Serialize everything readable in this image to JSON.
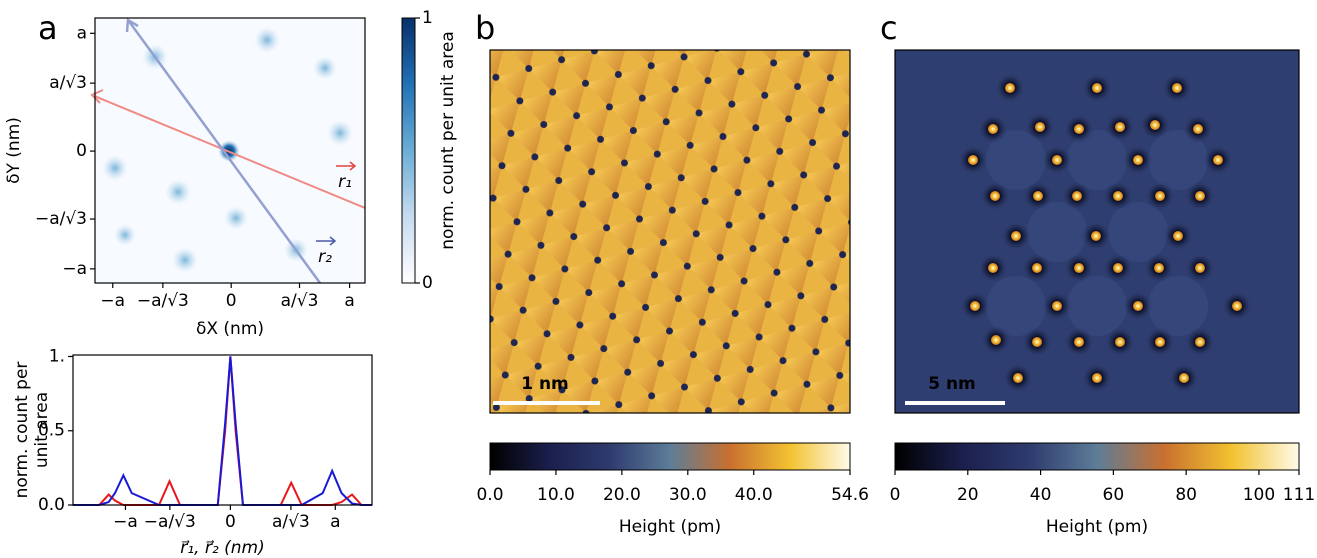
{
  "chart_data": [
    {
      "type": "heatmap",
      "panel_label": "a",
      "xlabel": "δX (nm)",
      "ylabel": "δY (nm)",
      "xlim": [
        -1.15,
        1.13
      ],
      "ylim": [
        -1.12,
        1.13
      ],
      "xticks": [
        {
          "value": -1,
          "label": "−a"
        },
        {
          "value": -0.577,
          "label": "−a/√3"
        },
        0,
        {
          "value": 0.577,
          "label": "a/√3"
        },
        {
          "value": 1,
          "label": "a"
        }
      ],
      "yticks": [
        {
          "value": -1,
          "label": "−a"
        },
        {
          "value": -0.577,
          "label": "−a/√3"
        },
        0,
        {
          "value": 0.577,
          "label": "a/√3"
        },
        {
          "value": 1,
          "label": "a"
        }
      ],
      "arrow_labels": [
        "r₁",
        "r₂"
      ],
      "arrow_colors": [
        "#e0453f",
        "#4a5aa8"
      ],
      "colorbar_label": "norm. count per unit area",
      "clim": [
        0,
        1
      ],
      "colorbar_ticks": [
        0,
        1
      ],
      "colormap": [
        "#ffffff",
        "#c6dbef",
        "#6baed6",
        "#2171b5",
        "#08306b"
      ]
    },
    {
      "type": "line",
      "ylabel_lines": [
        "norm. count per",
        "unit area"
      ],
      "xlabel": "r⃗₁, r⃗₂ (nm)",
      "xlim": [
        -1.5,
        1.35
      ],
      "ylim": [
        0,
        1.01
      ],
      "xticks": [
        {
          "value": -1,
          "label": "−a"
        },
        {
          "value": -0.577,
          "label": "−a/√3"
        },
        0,
        {
          "value": 0.577,
          "label": "a/√3"
        },
        {
          "value": 1,
          "label": "a"
        }
      ],
      "yticks": [
        {
          "value": 0,
          "label": "0.0"
        },
        0.5,
        {
          "value": 1,
          "label": "1."
        }
      ],
      "x": [
        -1.5,
        -1.25,
        -1.16,
        -1.1,
        -1.02,
        -0.94,
        -0.68,
        -0.58,
        -0.48,
        -0.12,
        -0.05,
        0,
        0.05,
        0.12,
        0.48,
        0.58,
        0.68,
        0.88,
        0.97,
        1.06,
        1.16,
        1.25,
        1.35
      ],
      "series": [
        {
          "color": "#e8161b",
          "values": [
            0,
            0,
            0.07,
            0.03,
            0,
            0,
            0,
            0.16,
            0,
            0,
            0.5,
            1,
            0.5,
            0,
            0,
            0.15,
            0,
            0,
            0,
            0.02,
            0.07,
            0,
            0
          ]
        },
        {
          "color": "#1a1ad6",
          "values": [
            0,
            0,
            0.02,
            0.08,
            0.2,
            0.08,
            0,
            0,
            0,
            0,
            0.55,
            1,
            0.55,
            0,
            0,
            0,
            0,
            0.08,
            0.23,
            0.08,
            0.01,
            0,
            0
          ]
        }
      ]
    },
    {
      "type": "image",
      "panel_label": "b",
      "scale_bar": "1 nm",
      "colorbar_label": "Height (pm)",
      "clim": [
        0,
        54.6
      ],
      "colorbar_ticks": [
        {
          "value": 0,
          "label": "0.0"
        },
        {
          "value": 10,
          "label": "10.0"
        },
        {
          "value": 20,
          "label": "20.0"
        },
        {
          "value": 30,
          "label": "30.0"
        },
        {
          "value": 40,
          "label": "40.0"
        },
        54.6
      ],
      "colormap": [
        "#000000",
        "#1b1f4d",
        "#2e3b6e",
        "#5d7d98",
        "#c9702f",
        "#f2c230",
        "#fffbea"
      ]
    },
    {
      "type": "image",
      "panel_label": "c",
      "scale_bar": "5 nm",
      "colorbar_label": "Height (pm)",
      "clim": [
        0,
        111
      ],
      "colorbar_ticks": [
        0,
        20,
        40,
        60,
        80,
        100,
        111
      ],
      "colormap": [
        "#000000",
        "#1b1f4d",
        "#2e3b6e",
        "#5d7d98",
        "#c9702f",
        "#f2c230",
        "#fffbea"
      ]
    }
  ]
}
